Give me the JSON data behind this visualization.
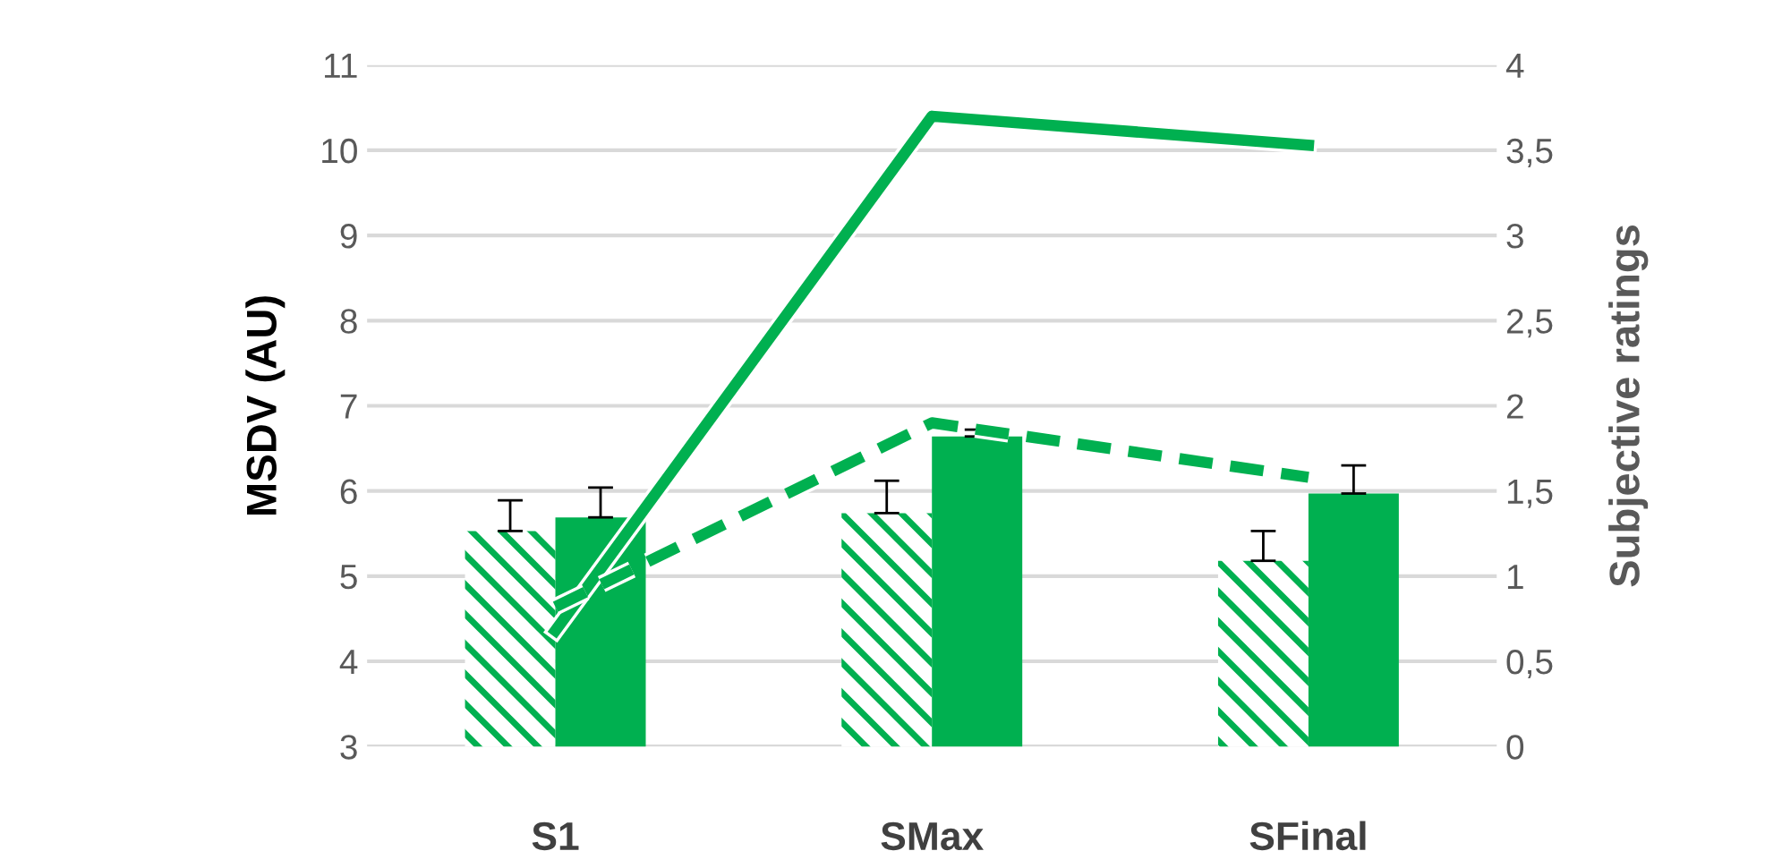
{
  "chart_data": {
    "type": "bar",
    "ylabel": "MSDV (AU)",
    "y2label": "Subjective ratings",
    "categories": [
      "S1",
      "SMax",
      "SFinal"
    ],
    "series": [
      {
        "color": "#00b050",
        "values": [
          5.53,
          5.74,
          5.18
        ],
        "errors": [
          [
            5.53,
            5.89
          ],
          [
            5.74,
            6.12
          ],
          [
            5.18,
            5.53
          ]
        ]
      },
      {
        "color": "#00b050",
        "values": [
          5.69,
          6.64,
          5.97
        ],
        "errors": [
          [
            5.69,
            6.04
          ],
          [
            6.64,
            6.72
          ],
          [
            5.97,
            6.3
          ]
        ]
      },
      {
        "type": "line",
        "axis": "y2",
        "color": "#00b050",
        "line_style": "solid",
        "values": [
          0.68,
          3.7,
          3.53
        ]
      },
      {
        "type": "line",
        "axis": "y2",
        "color": "#00b050",
        "line_style": "dashed",
        "values": [
          0.82,
          1.9,
          1.58
        ]
      }
    ],
    "ylim": [
      3,
      11
    ],
    "yticks": [
      3,
      4,
      5,
      6,
      7,
      8,
      9,
      10,
      11
    ],
    "y2lim": [
      0,
      4
    ],
    "y2ticks": [
      0,
      {
        "value": 0.5,
        "label": "0,5"
      },
      1,
      {
        "value": 1.5,
        "label": "1,5"
      },
      2,
      {
        "value": 2.5,
        "label": "2,5"
      },
      3,
      {
        "value": 3.5,
        "label": "3,5"
      },
      4
    ],
    "grid": "y",
    "legend": false
  }
}
